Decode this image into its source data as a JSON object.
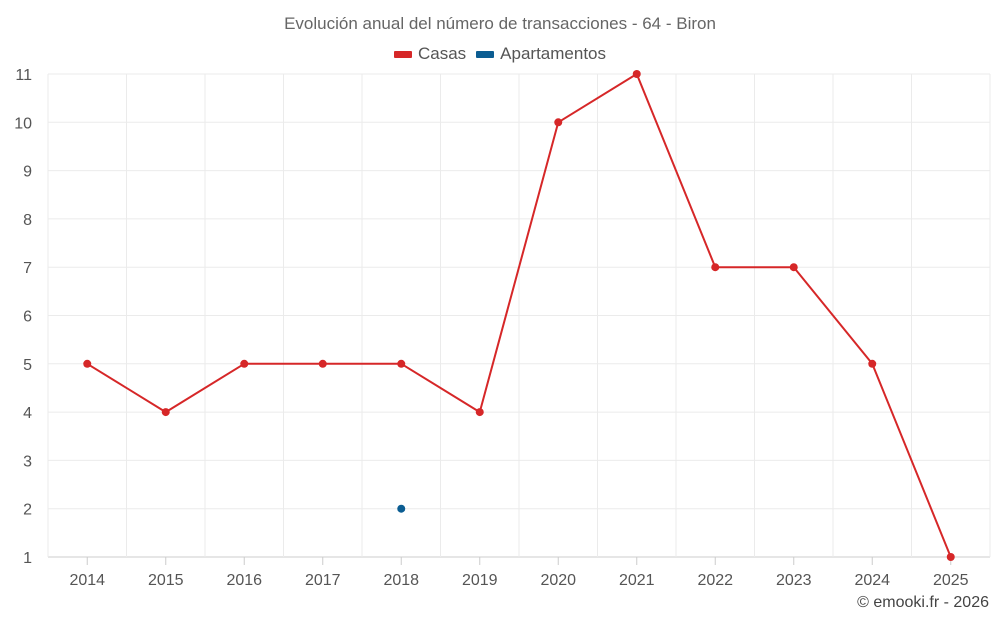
{
  "chart_data": {
    "type": "line",
    "title": "Evolución anual del número de transacciones - 64 - Biron",
    "categories": [
      "2014",
      "2015",
      "2016",
      "2017",
      "2018",
      "2019",
      "2020",
      "2021",
      "2022",
      "2023",
      "2024",
      "2025"
    ],
    "series": [
      {
        "name": "Casas",
        "color": "#d62728",
        "values": [
          5,
          4,
          5,
          5,
          5,
          4,
          10,
          11,
          7,
          7,
          5,
          1
        ]
      },
      {
        "name": "Apartamentos",
        "color": "#0b5d92",
        "values": [
          null,
          null,
          null,
          null,
          2,
          null,
          null,
          null,
          null,
          null,
          null,
          null
        ]
      }
    ],
    "yticks": [
      "1",
      "2",
      "3",
      "4",
      "5",
      "6",
      "7",
      "8",
      "9",
      "10",
      "11"
    ],
    "ylim": [
      1,
      11
    ],
    "grid": true,
    "legend_position": "top-center"
  },
  "credit": "© emooki.fr - 2026"
}
